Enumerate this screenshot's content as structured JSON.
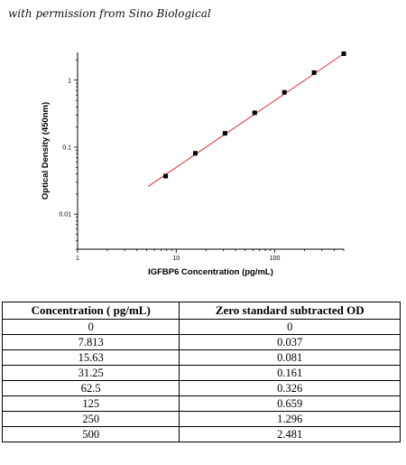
{
  "permission_text": "with permission from Sino Biological",
  "chart_data": {
    "type": "scatter",
    "title": "",
    "xlabel": "IGFBP6 Concentration (pg/mL)",
    "ylabel": "Optical Density (450nm)",
    "x_scale": "log",
    "y_scale": "log",
    "xlim": [
      1,
      500
    ],
    "ylim": [
      0.003,
      2.6
    ],
    "x_ticks": [
      1,
      10,
      100
    ],
    "x_tick_labels": [
      "1",
      "10",
      "100"
    ],
    "y_ticks": [
      0.01,
      0.1,
      1
    ],
    "y_tick_labels": [
      "0.01",
      "0.1",
      "1"
    ],
    "grid": false,
    "points": {
      "x": [
        7.813,
        15.63,
        31.25,
        62.5,
        125,
        250,
        500
      ],
      "y": [
        0.037,
        0.081,
        0.161,
        0.326,
        0.659,
        1.296,
        2.481
      ]
    },
    "fit_line": {
      "x": [
        5.2,
        500
      ],
      "y": [
        0.026,
        2.481
      ],
      "color": "#e03030"
    },
    "marker_color": "#000000"
  },
  "table": {
    "headers": [
      "Concentration ( pg/mL)",
      "Zero standard subtracted OD"
    ],
    "rows": [
      [
        "0",
        "0"
      ],
      [
        "7.813",
        "0.037"
      ],
      [
        "15.63",
        "0.081"
      ],
      [
        "31.25",
        "0.161"
      ],
      [
        "62.5",
        "0.326"
      ],
      [
        "125",
        "0.659"
      ],
      [
        "250",
        "1.296"
      ],
      [
        "500",
        "2.481"
      ]
    ]
  }
}
